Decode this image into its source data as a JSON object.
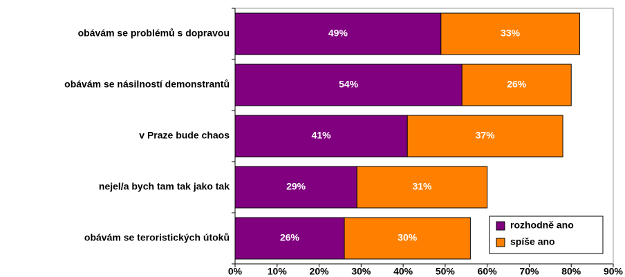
{
  "chart_data": {
    "type": "stacked-bar-horizontal",
    "categories": [
      "obávám se problémů s dopravou",
      "obávám se násilností demonstrantů",
      "v Praze bude chaos",
      "nejel/a bych tam tak jako tak",
      "obávám se teroristických útoků"
    ],
    "series": [
      {
        "name": "rozhodně ano",
        "color": "#800080",
        "values": [
          49,
          54,
          41,
          29,
          26
        ],
        "value_labels": [
          "49%",
          "54%",
          "41%",
          "29%",
          "26%"
        ]
      },
      {
        "name": "spíše ano",
        "color": "#ff8000",
        "values": [
          33,
          26,
          37,
          31,
          30
        ],
        "value_labels": [
          "33%",
          "26%",
          "37%",
          "31%",
          "30%"
        ]
      }
    ],
    "xlim": [
      0,
      90
    ],
    "xticks": [
      {
        "value": 0,
        "label": "0%"
      },
      {
        "value": 10,
        "label": "10%"
      },
      {
        "value": 20,
        "label": "20%"
      },
      {
        "value": 30,
        "label": "30%"
      },
      {
        "value": 40,
        "label": "40%"
      },
      {
        "value": 50,
        "label": "50%"
      },
      {
        "value": 60,
        "label": "60%"
      },
      {
        "value": 70,
        "label": "70%"
      },
      {
        "value": 80,
        "label": "80%"
      },
      {
        "value": 90,
        "label": "90%"
      }
    ],
    "legend": "lower right"
  }
}
